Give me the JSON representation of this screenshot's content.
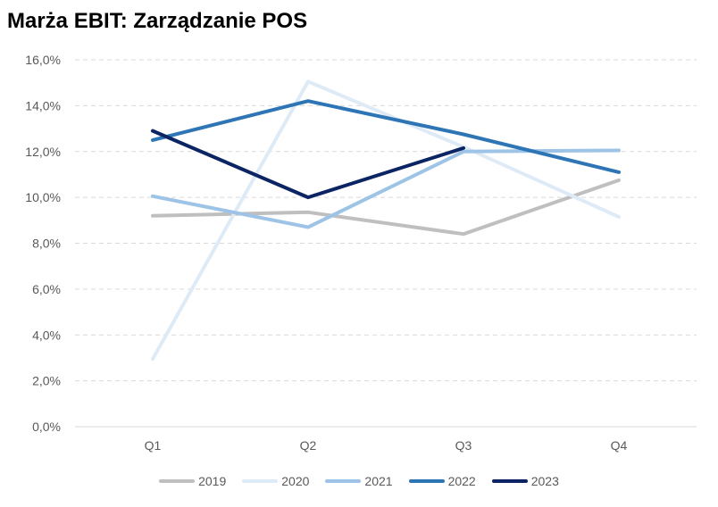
{
  "chart_data": {
    "type": "line",
    "title": "Marża EBIT: Zarządzanie POS",
    "xlabel": "",
    "ylabel": "",
    "categories": [
      "Q1",
      "Q2",
      "Q3",
      "Q4"
    ],
    "ylim": [
      0,
      16
    ],
    "yticks": [
      0,
      2,
      4,
      6,
      8,
      10,
      12,
      14,
      16
    ],
    "ytick_labels": [
      "0,0%",
      "2,0%",
      "4,0%",
      "6,0%",
      "8,0%",
      "10,0%",
      "12,0%",
      "14,0%",
      "16,0%"
    ],
    "grid": true,
    "legend_position": "bottom",
    "series": [
      {
        "name": "2019",
        "color": "#bfbfbf",
        "values": [
          9.2,
          9.35,
          8.4,
          10.75
        ]
      },
      {
        "name": "2020",
        "color": "#deebf7",
        "values": [
          2.95,
          15.05,
          12.2,
          9.15
        ]
      },
      {
        "name": "2021",
        "color": "#9dc3e6",
        "values": [
          10.05,
          8.7,
          12.0,
          12.05
        ]
      },
      {
        "name": "2022",
        "color": "#2e75b6",
        "values": [
          12.5,
          14.2,
          12.75,
          11.1
        ]
      },
      {
        "name": "2023",
        "color": "#0b2463",
        "values": [
          12.9,
          10.0,
          12.15,
          null
        ]
      }
    ]
  }
}
